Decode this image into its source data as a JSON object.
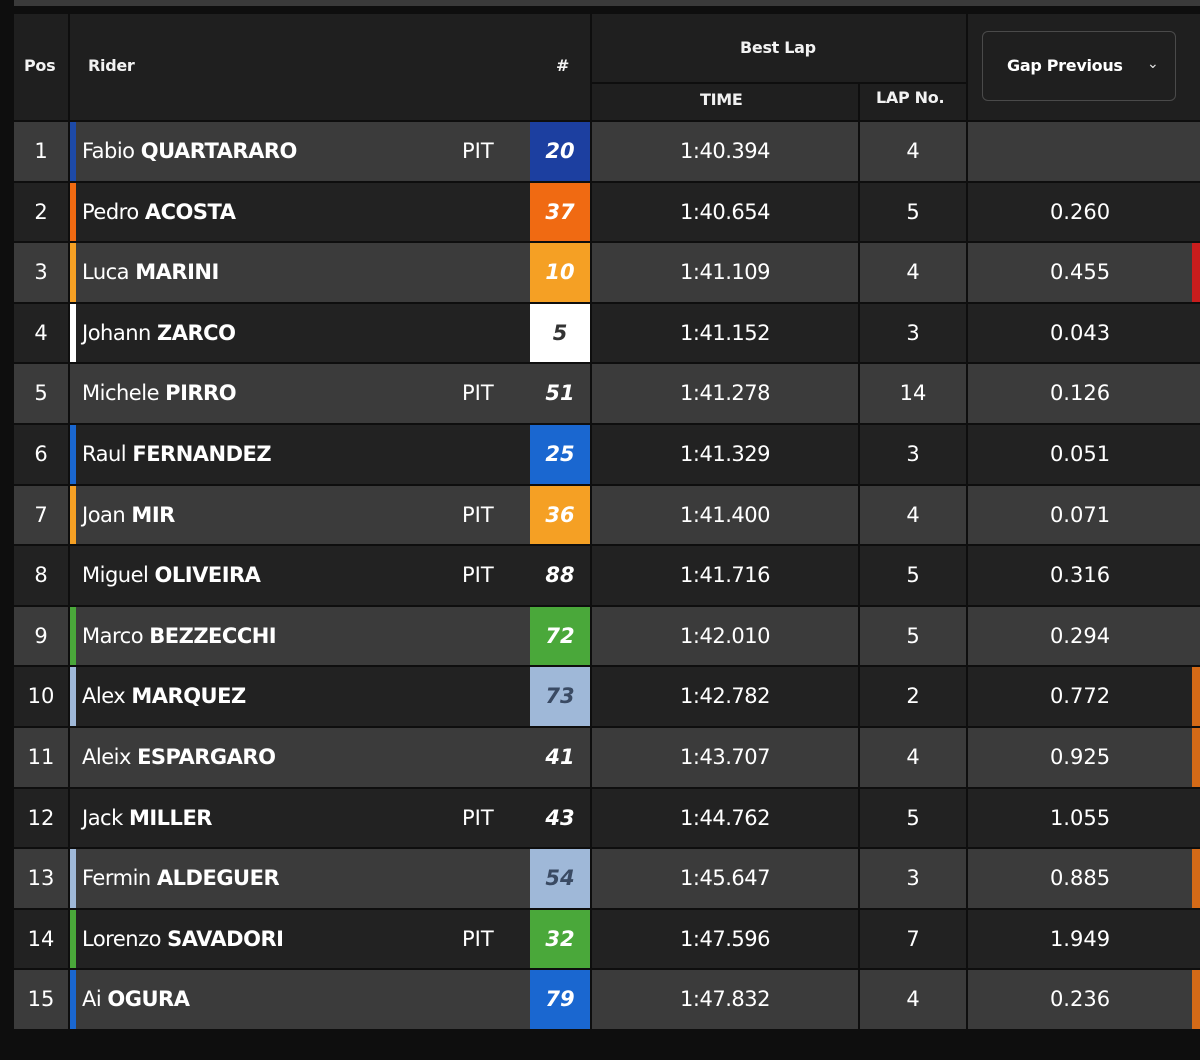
{
  "header": {
    "pos": "Pos",
    "rider": "Rider",
    "number": "#",
    "best_lap": "Best Lap",
    "time": "TIME",
    "lap_no": "LAP No.",
    "gap_selector": "Gap Previous"
  },
  "rows": [
    {
      "pos": "1",
      "first": "Fabio",
      "last": "QUARTARARO",
      "pit": "PIT",
      "num": "20",
      "time": "1:40.394",
      "lap": "4",
      "gap": "",
      "team_color": "#1d4aa8",
      "num_bg": "#1c3fa0",
      "num_color": "#ffffff",
      "edge": ""
    },
    {
      "pos": "2",
      "first": "Pedro",
      "last": "ACOSTA",
      "pit": "",
      "num": "37",
      "time": "1:40.654",
      "lap": "5",
      "gap": "0.260",
      "team_color": "#f06a12",
      "num_bg": "#f06a12",
      "num_color": "#ffffff",
      "edge": ""
    },
    {
      "pos": "3",
      "first": "Luca",
      "last": "MARINI",
      "pit": "",
      "num": "10",
      "time": "1:41.109",
      "lap": "4",
      "gap": "0.455",
      "team_color": "#f5a024",
      "num_bg": "#f5a024",
      "num_color": "#ffffff",
      "edge": "#c81d1d"
    },
    {
      "pos": "4",
      "first": "Johann",
      "last": "ZARCO",
      "pit": "",
      "num": "5",
      "time": "1:41.152",
      "lap": "3",
      "gap": "0.043",
      "team_color": "#ffffff",
      "num_bg": "#ffffff",
      "num_color": "#333333",
      "edge": ""
    },
    {
      "pos": "5",
      "first": "Michele",
      "last": "PIRRO",
      "pit": "PIT",
      "num": "51",
      "time": "1:41.278",
      "lap": "14",
      "gap": "0.126",
      "team_color": "",
      "num_bg": "",
      "num_color": "#ffffff",
      "edge": ""
    },
    {
      "pos": "6",
      "first": "Raul",
      "last": "FERNANDEZ",
      "pit": "",
      "num": "25",
      "time": "1:41.329",
      "lap": "3",
      "gap": "0.051",
      "team_color": "#1a67d0",
      "num_bg": "#1a67d0",
      "num_color": "#ffffff",
      "edge": ""
    },
    {
      "pos": "7",
      "first": "Joan",
      "last": "MIR",
      "pit": "PIT",
      "num": "36",
      "time": "1:41.400",
      "lap": "4",
      "gap": "0.071",
      "team_color": "#f5a024",
      "num_bg": "#f5a024",
      "num_color": "#ffffff",
      "edge": ""
    },
    {
      "pos": "8",
      "first": "Miguel",
      "last": "OLIVEIRA",
      "pit": "PIT",
      "num": "88",
      "time": "1:41.716",
      "lap": "5",
      "gap": "0.316",
      "team_color": "",
      "num_bg": "",
      "num_color": "#ffffff",
      "edge": ""
    },
    {
      "pos": "9",
      "first": "Marco",
      "last": "BEZZECCHI",
      "pit": "",
      "num": "72",
      "time": "1:42.010",
      "lap": "5",
      "gap": "0.294",
      "team_color": "#4aa83a",
      "num_bg": "#4aa83a",
      "num_color": "#ffffff",
      "edge": ""
    },
    {
      "pos": "10",
      "first": "Alex",
      "last": "MARQUEZ",
      "pit": "",
      "num": "73",
      "time": "1:42.782",
      "lap": "2",
      "gap": "0.772",
      "team_color": "#9fb8d8",
      "num_bg": "#9fb8d8",
      "num_color": "#3a4a63",
      "edge": "#d46a17"
    },
    {
      "pos": "11",
      "first": "Aleix",
      "last": "ESPARGARO",
      "pit": "",
      "num": "41",
      "time": "1:43.707",
      "lap": "4",
      "gap": "0.925",
      "team_color": "",
      "num_bg": "",
      "num_color": "#ffffff",
      "edge": "#d46a17"
    },
    {
      "pos": "12",
      "first": "Jack",
      "last": "MILLER",
      "pit": "PIT",
      "num": "43",
      "time": "1:44.762",
      "lap": "5",
      "gap": "1.055",
      "team_color": "",
      "num_bg": "",
      "num_color": "#ffffff",
      "edge": ""
    },
    {
      "pos": "13",
      "first": "Fermin",
      "last": "ALDEGUER",
      "pit": "",
      "num": "54",
      "time": "1:45.647",
      "lap": "3",
      "gap": "0.885",
      "team_color": "#9fb8d8",
      "num_bg": "#9fb8d8",
      "num_color": "#3a4a63",
      "edge": "#d46a17"
    },
    {
      "pos": "14",
      "first": "Lorenzo",
      "last": "SAVADORI",
      "pit": "PIT",
      "num": "32",
      "time": "1:47.596",
      "lap": "7",
      "gap": "1.949",
      "team_color": "#4aa83a",
      "num_bg": "#4aa83a",
      "num_color": "#ffffff",
      "edge": ""
    },
    {
      "pos": "15",
      "first": "Ai",
      "last": "OGURA",
      "pit": "",
      "num": "79",
      "time": "1:47.832",
      "lap": "4",
      "gap": "0.236",
      "team_color": "#1a67d0",
      "num_bg": "#1a67d0",
      "num_color": "#ffffff",
      "edge": "#d46a17"
    }
  ]
}
